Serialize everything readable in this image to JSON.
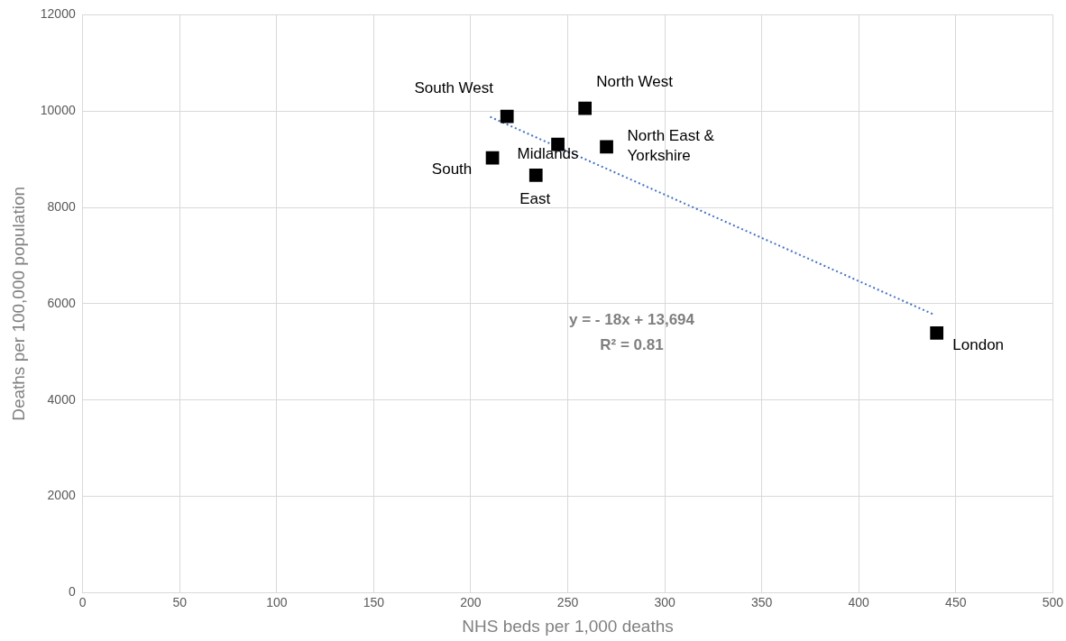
{
  "chart_data": {
    "type": "scatter",
    "xlabel": "NHS beds per 1,000 deaths",
    "ylabel": "Deaths per 100,000 population",
    "x": [
      218.7,
      258.9,
      244.9,
      270,
      211.2,
      233.6,
      440.2
    ],
    "series": [
      {
        "color": "#000000",
        "values": [
          9890,
          10060,
          9310,
          9260,
          9030,
          8670,
          5390
        ],
        "marker": "square"
      },
      {
        "type": "line",
        "color": "#4472c4",
        "x": [
          210,
          439
        ],
        "values": [
          9880,
          5770
        ],
        "line_style": "dotted",
        "marker": "none"
      }
    ],
    "xlim": [
      0,
      500
    ],
    "xticks": [
      0,
      50,
      100,
      150,
      200,
      250,
      300,
      350,
      400,
      450,
      500
    ],
    "ylim": [
      0,
      12000
    ],
    "yticks": [
      0,
      2000,
      4000,
      6000,
      8000,
      10000,
      12000
    ],
    "grid": true,
    "legend": false,
    "annotations": [
      {
        "text": "South West",
        "x": 218.7,
        "y": 9890
      },
      {
        "text": "North West",
        "x": 258.9,
        "y": 10060
      },
      {
        "text": "Midlands",
        "x": 244.9,
        "y": 9310
      },
      {
        "text": "North East & Yorkshire",
        "x": 270,
        "y": 9260
      },
      {
        "text": "South",
        "x": 211.2,
        "y": 9030
      },
      {
        "text": "East",
        "x": 233.6,
        "y": 8670
      },
      {
        "text": "London",
        "x": 440.2,
        "y": 5390
      },
      "y = - 18x + 13,694",
      "R² = 0.81"
    ]
  }
}
